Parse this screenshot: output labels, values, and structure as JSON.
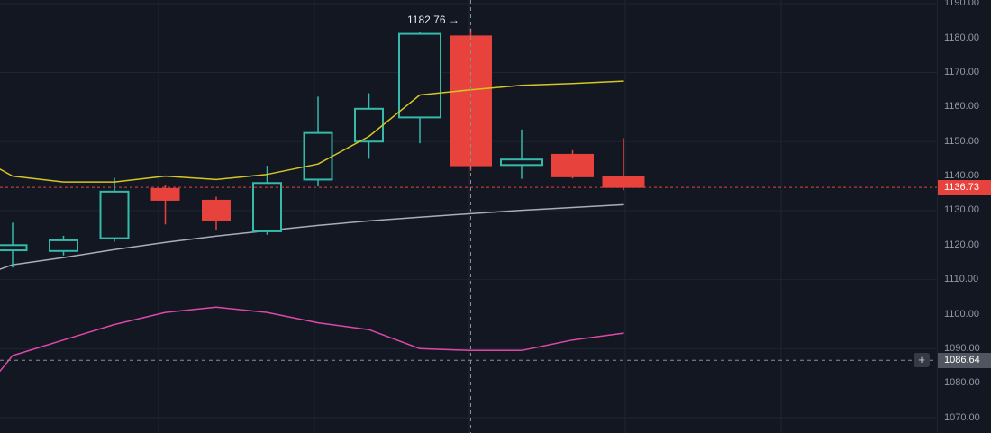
{
  "chart_data": {
    "type": "candlestick",
    "y_axis": {
      "min": 1067,
      "max": 1191,
      "tick_step": 10,
      "ticks": [
        1190,
        1180,
        1170,
        1160,
        1150,
        1140,
        1130,
        1120,
        1110,
        1100,
        1090,
        1080,
        1070
      ],
      "tick_labels": [
        "1190.00",
        "1180.00",
        "1170.00",
        "1160.00",
        "1150.00",
        "1140.00",
        "1130.00",
        "1120.00",
        "1110.00",
        "1100.00",
        "1090.00",
        "1080.00",
        "1070.00"
      ]
    },
    "grid": {
      "h_line_prices": [
        1190,
        1170,
        1150,
        1130,
        1110,
        1090,
        1070
      ]
    },
    "candles": [
      {
        "open": 1118.5,
        "high": 1126.5,
        "low": 1113.5,
        "close": 1120.0
      },
      {
        "open": 1118.3,
        "high": 1122.7,
        "low": 1117.0,
        "close": 1121.4
      },
      {
        "open": 1122.0,
        "high": 1139.5,
        "low": 1121.0,
        "close": 1135.5
      },
      {
        "open": 1136.4,
        "high": 1137.5,
        "low": 1126.0,
        "close": 1133.0
      },
      {
        "open": 1133.0,
        "high": 1134.0,
        "low": 1124.5,
        "close": 1127.0
      },
      {
        "open": 1124.0,
        "high": 1143.0,
        "low": 1123.0,
        "close": 1138.0
      },
      {
        "open": 1139.0,
        "high": 1163.0,
        "low": 1137.0,
        "close": 1152.5
      },
      {
        "open": 1150.0,
        "high": 1164.0,
        "low": 1145.0,
        "close": 1159.5
      },
      {
        "open": 1157.0,
        "high": 1181.8,
        "low": 1149.5,
        "close": 1181.2
      },
      {
        "open": 1180.6,
        "high": 1182.76,
        "low": 1141.5,
        "close": 1143.0
      },
      {
        "open": 1143.2,
        "high": 1153.5,
        "low": 1139.2,
        "close": 1144.8
      },
      {
        "open": 1146.3,
        "high": 1147.5,
        "low": 1139.3,
        "close": 1139.8
      },
      {
        "open": 1140.0,
        "high": 1151.0,
        "low": 1135.9,
        "close": 1136.73
      }
    ],
    "series": [
      {
        "name": "ma-fast-yellow",
        "color": "#d3c724",
        "values": [
          1142.0,
          1140.0,
          1138.3,
          1138.3,
          1140.0,
          1139.0,
          1140.5,
          1143.5,
          1151.5,
          1163.5,
          1165.0,
          1166.3,
          1166.8,
          1167.5
        ]
      },
      {
        "name": "ma-slow-gray",
        "color": "#a8aeb9",
        "values": [
          1113.0,
          1114.3,
          1116.4,
          1118.7,
          1120.8,
          1122.6,
          1124.2,
          1125.7,
          1127.0,
          1128.1,
          1129.1,
          1130.1,
          1130.9,
          1131.7
        ]
      },
      {
        "name": "band-lower-magenta",
        "color": "#dd48a9",
        "values": [
          1083.5,
          1088.0,
          1092.5,
          1097.0,
          1100.5,
          1102.0,
          1100.5,
          1097.5,
          1095.5,
          1090.0,
          1089.5,
          1089.5,
          1092.5,
          1094.5
        ]
      }
    ],
    "last_price": {
      "value": 1136.73,
      "label": "1136.73"
    },
    "crosshair": {
      "price": 1086.64,
      "price_label": "1086.64",
      "x_candle_index": 9
    },
    "annotation": {
      "text": "1182.76 →",
      "price": 1182.76
    }
  },
  "icons": {
    "crosshair_plus": "+"
  },
  "colors": {
    "background": "#131722",
    "up_candle": "#35b9aa",
    "down_candle": "#e8423d",
    "grid_line": "#1e2433",
    "axis_text": "#9299a5",
    "crosshair": "#8b8f9a",
    "tag_gray_bg": "#50555f"
  }
}
